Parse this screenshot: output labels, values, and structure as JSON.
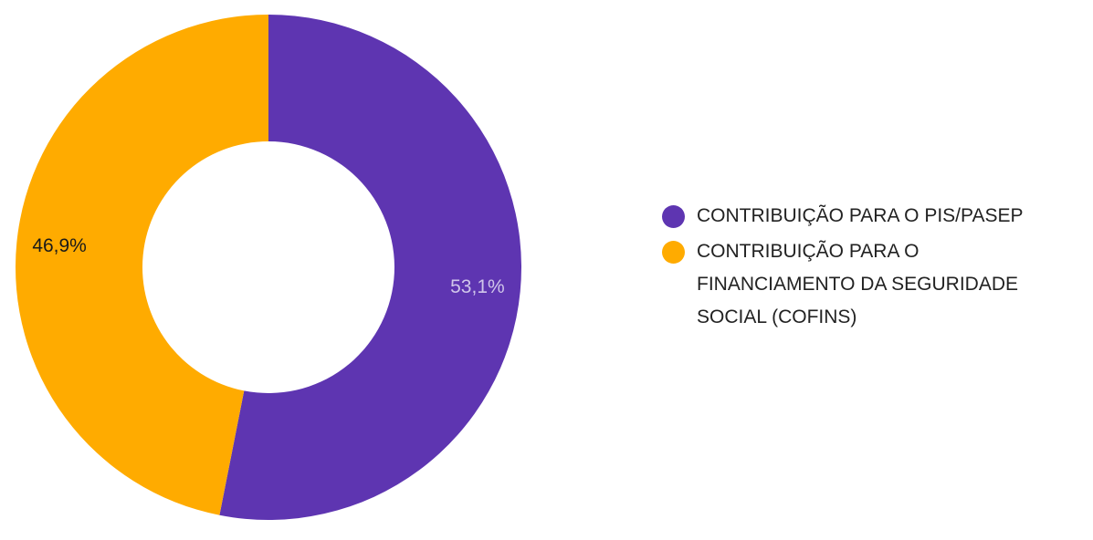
{
  "chart_data": {
    "type": "pie",
    "variant": "donut",
    "slices": [
      {
        "label": "CONTRIBUIÇÃO PARA O PIS/PASEP",
        "value": 53.1,
        "display": "53,1%",
        "color": "#5e35b1",
        "label_color": "#d0c6ea"
      },
      {
        "label": "CONTRIBUIÇÃO PARA O FINANCIAMENTO DA SEGURIDADE SOCIAL (COFINS)",
        "value": 46.9,
        "display": "46,9%",
        "color": "#ffab00",
        "label_color": "#1a1a1a"
      }
    ],
    "legend_position": "right"
  }
}
